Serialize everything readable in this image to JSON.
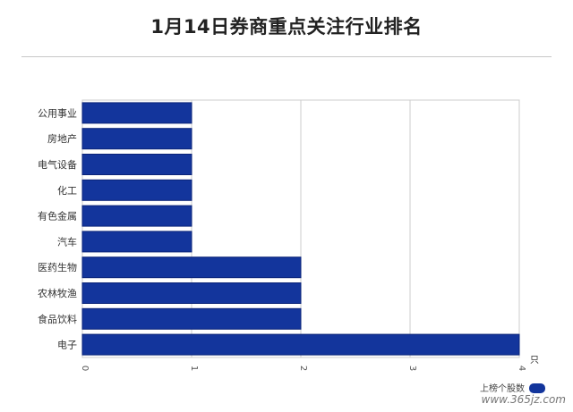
{
  "title": "1月14日券商重点关注行业排名",
  "chart_data": {
    "type": "bar",
    "orientation": "horizontal",
    "title": "1月14日券商重点关注行业排名",
    "categories": [
      "公用事业",
      "房地产",
      "电气设备",
      "化工",
      "有色金属",
      "汽车",
      "医药生物",
      "农林牧渔",
      "食品饮料",
      "电子"
    ],
    "series": [
      {
        "name": "上榜个股数",
        "values": [
          1,
          1,
          1,
          1,
          1,
          1,
          2,
          2,
          2,
          4
        ]
      }
    ],
    "xlim": [
      0,
      4
    ],
    "xticks": [
      "0",
      "1",
      "2",
      "3",
      "4"
    ],
    "x_unit": "只",
    "grid": true,
    "legend_position": "bottom-right",
    "bar_color": "#13359c"
  },
  "watermark": "www.365jz.com"
}
